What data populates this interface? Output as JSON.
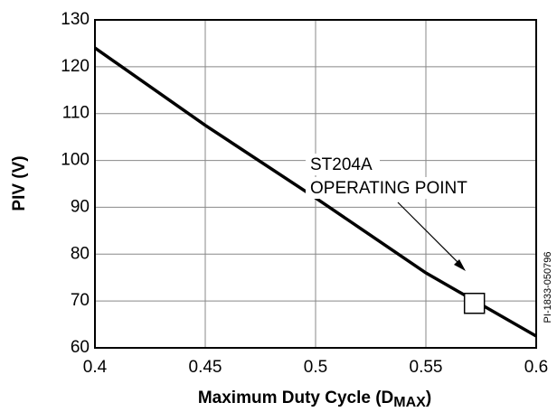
{
  "chart_data": {
    "type": "line",
    "xlabel": "Maximum Duty Cycle (D",
    "xlabel_sub": "MAX",
    "xlabel_end": ")",
    "ylabel": "PIV (V)",
    "side_note": "PI-1833-050796",
    "x": [
      0.4,
      0.45,
      0.5,
      0.55,
      0.6
    ],
    "series": [
      {
        "name": "PIV",
        "color": "#000000",
        "values": [
          124,
          107.5,
          92,
          76,
          62.5
        ]
      }
    ],
    "xlim": [
      0.4,
      0.6
    ],
    "xticks": [
      0.4,
      0.45,
      0.5,
      0.55,
      0.6
    ],
    "ylim": [
      60,
      130
    ],
    "yticks": [
      60,
      70,
      80,
      90,
      100,
      110,
      120,
      130
    ],
    "grid": true,
    "annotations": [
      {
        "text": [
          "ST204A",
          "OPERATING POINT"
        ],
        "x": 0.572,
        "y": 69.5
      }
    ]
  }
}
